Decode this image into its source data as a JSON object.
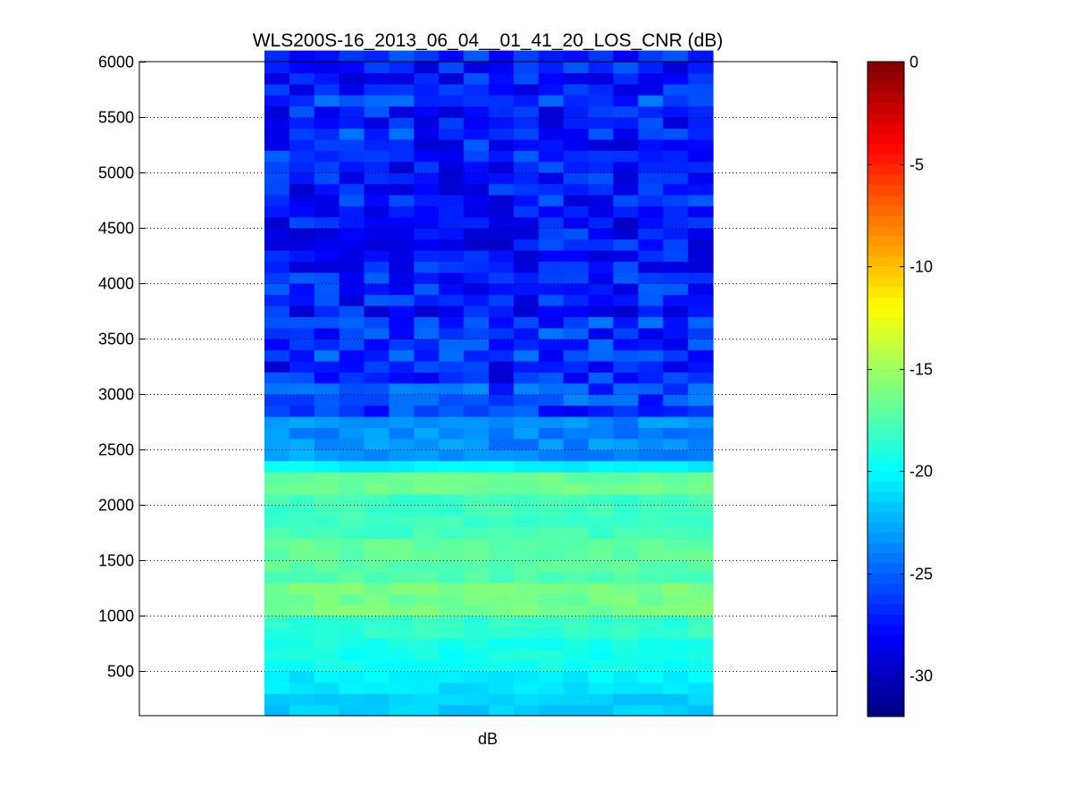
{
  "chart_data": {
    "type": "heatmap",
    "title": "WLS200S-16_2013_06_04__01_41_20_LOS_CNR (dB)",
    "xlabel": "dB",
    "ylabel": "",
    "ylim": [
      100,
      6000
    ],
    "yticks": [
      500,
      1000,
      1500,
      2000,
      2500,
      3000,
      3500,
      4000,
      4500,
      5000,
      5500,
      6000
    ],
    "grid": "horizontal dotted",
    "colormap": "jet",
    "colorbar": {
      "clim": [
        -32,
        0
      ],
      "ticks": [
        0,
        -5,
        -10,
        -15,
        -20,
        -25,
        -30
      ],
      "tick_labels": [
        "0",
        "-5",
        "-10",
        "-15",
        "-20",
        "-25",
        "-30"
      ]
    },
    "columns": 18,
    "rows": 60,
    "range_gate_step": 100,
    "profile": [
      {
        "from": 100,
        "to": 300,
        "cnr_db": -21.5
      },
      {
        "from": 300,
        "to": 500,
        "cnr_db": -20.6
      },
      {
        "from": 500,
        "to": 800,
        "cnr_db": -19.4
      },
      {
        "from": 800,
        "to": 1000,
        "cnr_db": -18.4
      },
      {
        "from": 1000,
        "to": 1300,
        "cnr_db": -16.3
      },
      {
        "from": 1300,
        "to": 1700,
        "cnr_db": -17.2
      },
      {
        "from": 1700,
        "to": 2100,
        "cnr_db": -18.0
      },
      {
        "from": 2100,
        "to": 2300,
        "cnr_db": -16.5
      },
      {
        "from": 2300,
        "to": 2400,
        "cnr_db": -20.4
      },
      {
        "from": 2400,
        "to": 2800,
        "cnr_db": -23.3
      },
      {
        "from": 2800,
        "to": 3100,
        "cnr_db": -25.8
      },
      {
        "from": 3100,
        "to": 6000,
        "cnr_db": -27.2
      }
    ]
  }
}
